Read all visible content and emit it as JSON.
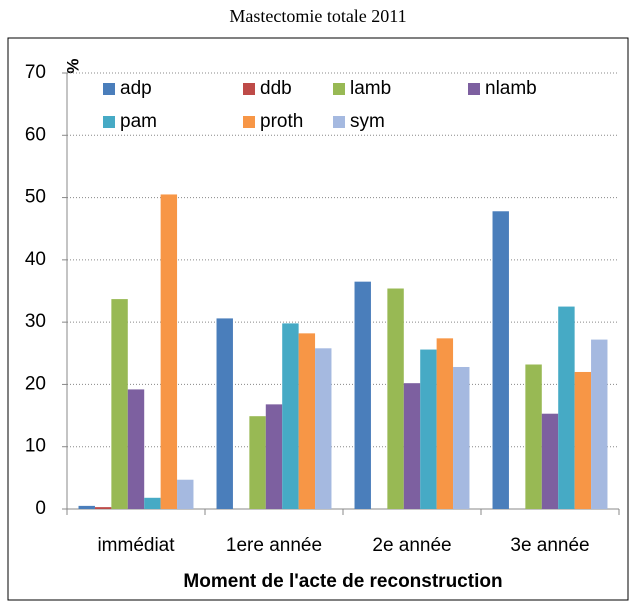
{
  "chart_data": {
    "type": "bar",
    "title": "Mastectomie totale 2011",
    "y_label": "%",
    "x_label": "Moment de l'acte de reconstruction",
    "categories": [
      "immédiat",
      "1ere année",
      "2e année",
      "3e année"
    ],
    "series": [
      {
        "name": "adp",
        "color": "#4a7ebb",
        "values": [
          0.5,
          30.6,
          36.5,
          47.8
        ]
      },
      {
        "name": "ddb",
        "color": "#be4b48",
        "values": [
          0.3,
          0,
          0,
          0
        ]
      },
      {
        "name": "lamb",
        "color": "#98b954",
        "values": [
          33.7,
          14.9,
          35.4,
          23.2
        ]
      },
      {
        "name": "nlamb",
        "color": "#7d60a0",
        "values": [
          19.2,
          16.8,
          20.2,
          15.3
        ]
      },
      {
        "name": "pam",
        "color": "#46aac5",
        "values": [
          1.8,
          29.8,
          25.6,
          32.5
        ]
      },
      {
        "name": "proth",
        "color": "#f79646",
        "values": [
          50.5,
          28.2,
          27.4,
          22.0
        ]
      },
      {
        "name": "sym",
        "color": "#a5b9e0",
        "values": [
          4.7,
          25.8,
          22.8,
          27.2
        ]
      }
    ],
    "ylim": [
      0,
      70
    ],
    "yticks": [
      0,
      10,
      20,
      30,
      40,
      50,
      60,
      70
    ],
    "grid": true,
    "legend": "top"
  }
}
